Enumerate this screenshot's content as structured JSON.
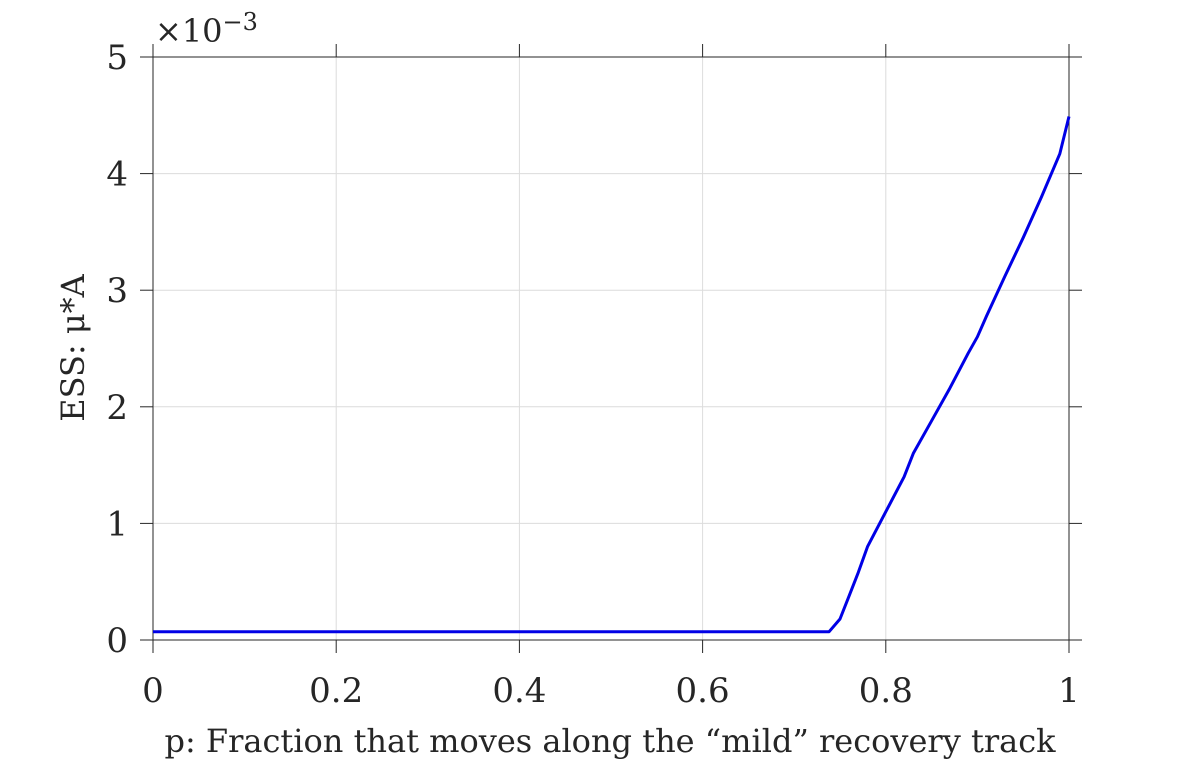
{
  "chart_data": {
    "type": "line",
    "xlabel": "p: Fraction that moves along the “mild” recovery track",
    "ylabel": "ESS: μ*A",
    "y_scale_multiplier": "×10⁻³",
    "y_exponent_base": "×10",
    "y_exponent_power": "−3",
    "xlim": [
      0,
      1
    ],
    "ylim": [
      0,
      5
    ],
    "x_tick_labels": [
      "0",
      "0.2",
      "0.4",
      "0.6",
      "0.8",
      "1"
    ],
    "y_tick_labels": [
      "0",
      "1",
      "2",
      "3",
      "4",
      "5"
    ],
    "x_ticks": [
      0,
      0.2,
      0.4,
      0.6,
      0.8,
      1.0
    ],
    "y_ticks": [
      0,
      1,
      2,
      3,
      4,
      5
    ],
    "grid": true,
    "series": [
      {
        "color": "#0000e6",
        "x": [
          0,
          0.1,
          0.2,
          0.3,
          0.4,
          0.5,
          0.6,
          0.7,
          0.738,
          0.75,
          0.76,
          0.77,
          0.78,
          0.8,
          0.82,
          0.83,
          0.85,
          0.87,
          0.89,
          0.9,
          0.91,
          0.93,
          0.95,
          0.97,
          0.99,
          1.0
        ],
        "y": [
          0.07,
          0.07,
          0.07,
          0.07,
          0.07,
          0.07,
          0.07,
          0.07,
          0.07,
          0.18,
          0.38,
          0.58,
          0.8,
          1.1,
          1.4,
          1.6,
          1.88,
          2.16,
          2.46,
          2.6,
          2.78,
          3.12,
          3.45,
          3.8,
          4.17,
          4.49
        ]
      }
    ]
  }
}
